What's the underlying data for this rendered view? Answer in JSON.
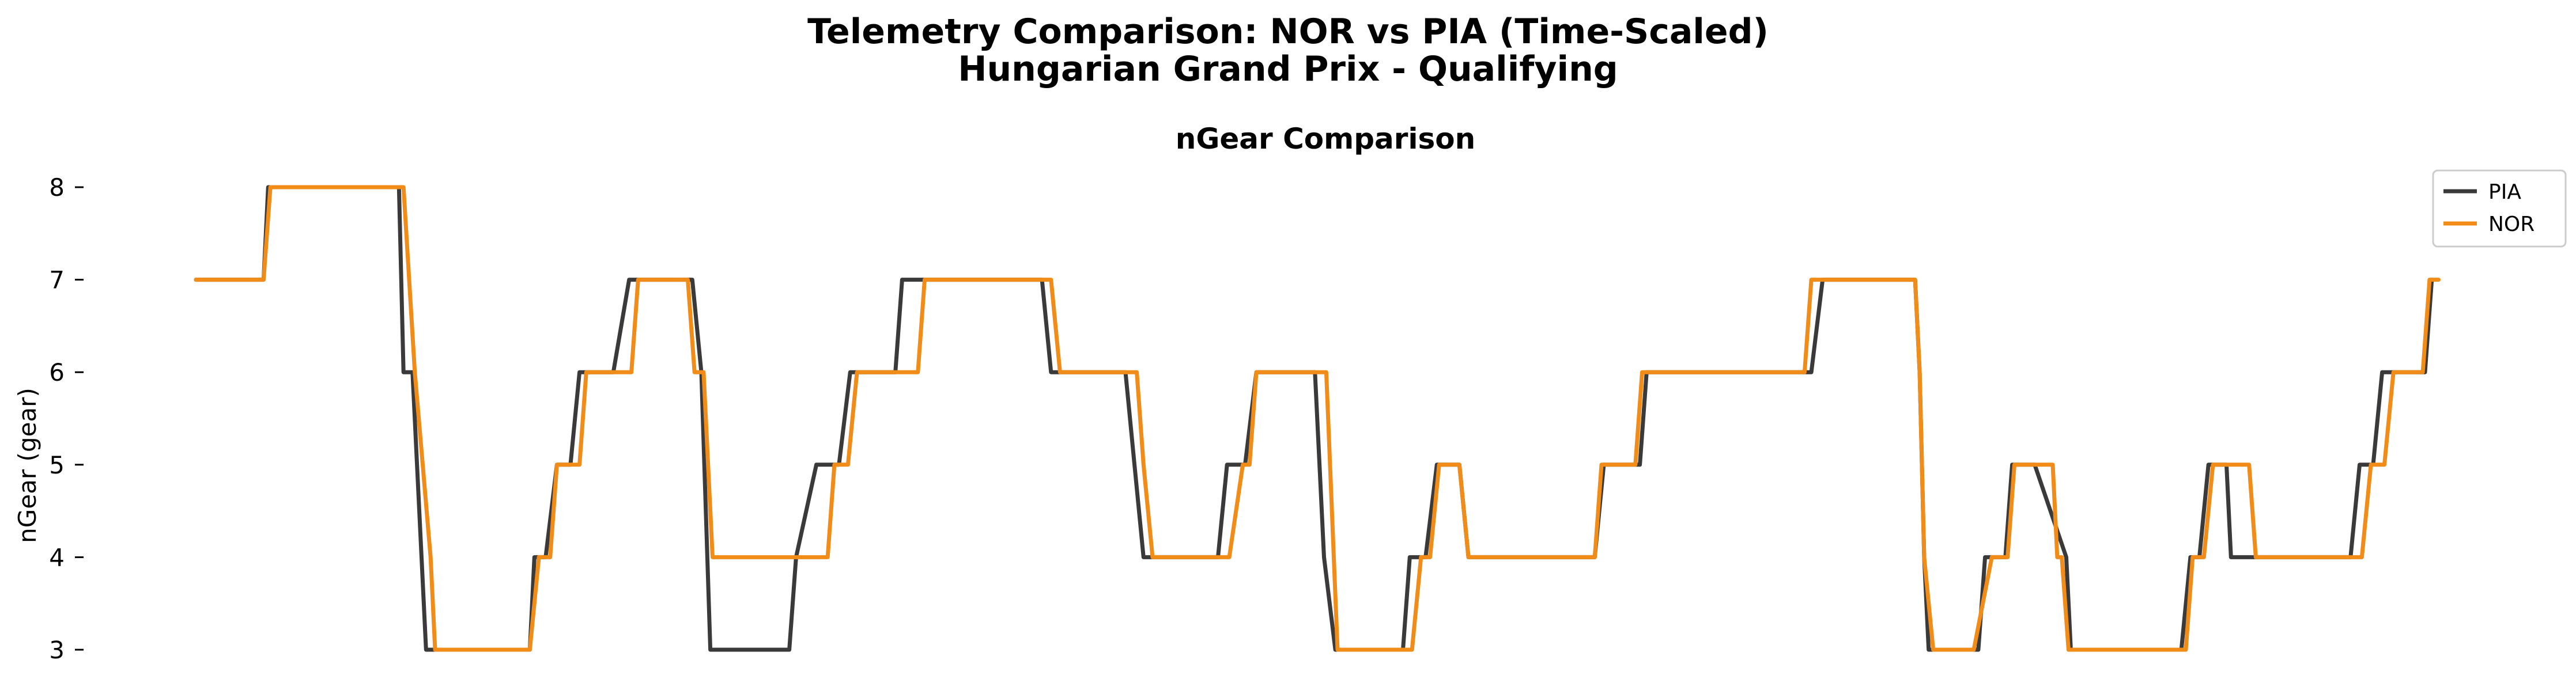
{
  "figure": {
    "title_line1": "Telemetry Comparison: NOR vs PIA (Time-Scaled)",
    "title_line2": "Hungarian Grand Prix - Qualifying"
  },
  "chart_data": {
    "type": "line",
    "title": "nGear Comparison",
    "xlabel": "",
    "ylabel": "nGear (gear)",
    "x_range": [
      0,
      100
    ],
    "ylim": [
      3,
      8
    ],
    "yticks": [
      "3",
      "4",
      "5",
      "6",
      "7",
      "8"
    ],
    "grid": false,
    "legend_position": "top-right",
    "series": [
      {
        "name": "PIA",
        "color": "#3a3a3a",
        "points": [
          [
            0,
            7
          ],
          [
            3.0,
            7
          ],
          [
            3.2,
            8
          ],
          [
            9.0,
            8
          ],
          [
            9.2,
            6
          ],
          [
            9.6,
            6
          ],
          [
            10.2,
            3
          ],
          [
            14.8,
            3
          ],
          [
            15.0,
            4
          ],
          [
            15.5,
            4
          ],
          [
            16.0,
            5
          ],
          [
            16.6,
            5
          ],
          [
            17.0,
            6
          ],
          [
            18.5,
            6
          ],
          [
            19.2,
            7
          ],
          [
            22.0,
            7
          ],
          [
            22.4,
            6
          ],
          [
            22.8,
            3
          ],
          [
            26.3,
            3
          ],
          [
            26.6,
            4
          ],
          [
            27.5,
            5
          ],
          [
            28.5,
            5
          ],
          [
            29.0,
            6
          ],
          [
            31.0,
            6
          ],
          [
            31.3,
            7
          ],
          [
            37.5,
            7
          ],
          [
            37.9,
            6
          ],
          [
            41.2,
            6
          ],
          [
            41.6,
            5
          ],
          [
            42.0,
            4
          ],
          [
            45.3,
            4
          ],
          [
            45.7,
            5
          ],
          [
            46.5,
            5
          ],
          [
            47.0,
            6
          ],
          [
            49.6,
            6
          ],
          [
            50.0,
            4
          ],
          [
            50.5,
            3
          ],
          [
            53.5,
            3
          ],
          [
            53.8,
            4
          ],
          [
            54.5,
            4
          ],
          [
            55.0,
            5
          ],
          [
            56.0,
            5
          ],
          [
            56.4,
            4
          ],
          [
            62.0,
            4
          ],
          [
            62.4,
            5
          ],
          [
            64.0,
            5
          ],
          [
            64.3,
            6
          ],
          [
            71.6,
            6
          ],
          [
            72.1,
            7
          ],
          [
            76.2,
            7
          ],
          [
            76.4,
            6
          ],
          [
            76.6,
            4
          ],
          [
            76.8,
            3
          ],
          [
            78.0,
            3
          ],
          [
            79.0,
            3
          ],
          [
            79.3,
            4
          ],
          [
            80.2,
            4
          ],
          [
            80.5,
            5
          ],
          [
            81.5,
            5
          ],
          [
            82.9,
            4
          ],
          [
            83.1,
            3
          ],
          [
            88.0,
            3
          ],
          [
            88.4,
            4
          ],
          [
            88.8,
            4
          ],
          [
            89.2,
            5
          ],
          [
            90.0,
            5
          ],
          [
            90.2,
            4
          ],
          [
            95.5,
            4
          ],
          [
            95.9,
            5
          ],
          [
            96.5,
            5
          ],
          [
            96.9,
            6
          ],
          [
            98.8,
            6
          ],
          [
            99.1,
            7
          ]
        ]
      },
      {
        "name": "NOR",
        "color": "#f28c18",
        "points": [
          [
            0,
            7
          ],
          [
            3.0,
            7
          ],
          [
            3.3,
            8
          ],
          [
            9.2,
            8
          ],
          [
            9.7,
            6
          ],
          [
            10.4,
            4
          ],
          [
            10.6,
            3
          ],
          [
            14.8,
            3
          ],
          [
            15.2,
            4
          ],
          [
            15.7,
            4
          ],
          [
            16.0,
            5
          ],
          [
            17.0,
            5
          ],
          [
            17.3,
            6
          ],
          [
            19.3,
            6
          ],
          [
            19.6,
            7
          ],
          [
            21.8,
            7
          ],
          [
            22.1,
            6
          ],
          [
            22.5,
            6
          ],
          [
            22.9,
            4
          ],
          [
            28.0,
            4
          ],
          [
            28.3,
            5
          ],
          [
            28.9,
            5
          ],
          [
            29.3,
            6
          ],
          [
            32.0,
            6
          ],
          [
            32.3,
            7
          ],
          [
            37.9,
            7
          ],
          [
            38.3,
            6
          ],
          [
            41.7,
            6
          ],
          [
            42.0,
            5
          ],
          [
            42.4,
            4
          ],
          [
            45.8,
            4
          ],
          [
            46.4,
            5
          ],
          [
            46.7,
            5
          ],
          [
            47.0,
            6
          ],
          [
            50.1,
            6
          ],
          [
            50.6,
            3
          ],
          [
            53.9,
            3
          ],
          [
            54.3,
            4
          ],
          [
            54.7,
            4
          ],
          [
            55.1,
            5
          ],
          [
            56.0,
            5
          ],
          [
            56.4,
            4
          ],
          [
            62.0,
            4
          ],
          [
            62.3,
            5
          ],
          [
            63.8,
            5
          ],
          [
            64.1,
            6
          ],
          [
            71.3,
            6
          ],
          [
            71.6,
            7
          ],
          [
            76.2,
            7
          ],
          [
            76.4,
            6
          ],
          [
            76.6,
            4
          ],
          [
            77.0,
            3
          ],
          [
            78.8,
            3
          ],
          [
            79.6,
            4
          ],
          [
            80.3,
            4
          ],
          [
            80.6,
            5
          ],
          [
            82.3,
            5
          ],
          [
            82.5,
            4
          ],
          [
            82.7,
            4
          ],
          [
            83.0,
            3
          ],
          [
            88.2,
            3
          ],
          [
            88.5,
            4
          ],
          [
            89.0,
            4
          ],
          [
            89.4,
            5
          ],
          [
            91.0,
            5
          ],
          [
            91.3,
            4
          ],
          [
            96.0,
            4
          ],
          [
            96.4,
            5
          ],
          [
            97.0,
            5
          ],
          [
            97.4,
            6
          ],
          [
            98.7,
            6
          ],
          [
            99.0,
            7
          ],
          [
            99.4,
            7
          ]
        ]
      }
    ]
  }
}
